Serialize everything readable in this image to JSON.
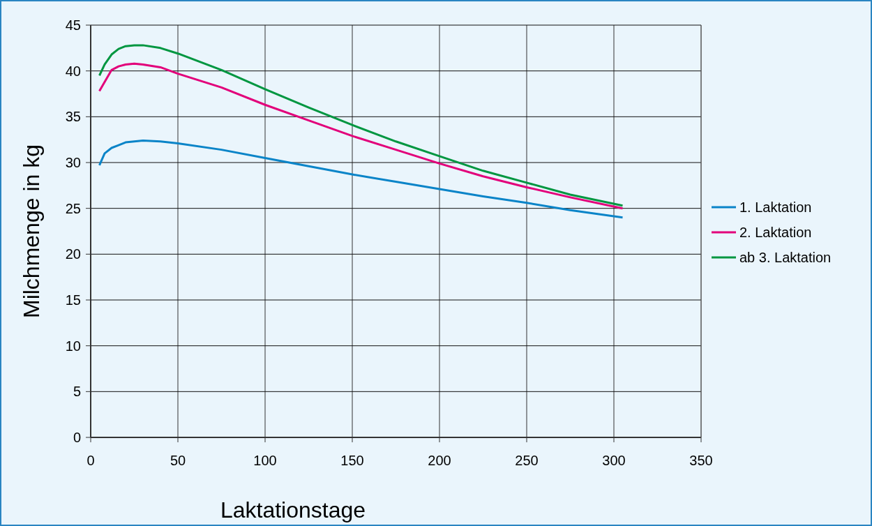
{
  "chart_data": {
    "type": "line",
    "xlabel": "Laktationstage",
    "ylabel": "Milchmenge in kg",
    "x": [
      5,
      8,
      12,
      16,
      20,
      25,
      30,
      40,
      50,
      75,
      100,
      125,
      150,
      175,
      200,
      225,
      250,
      275,
      305
    ],
    "series": [
      {
        "name": "1. Laktation",
        "color": "#0a84c8",
        "values": [
          29.7,
          31.0,
          31.6,
          31.9,
          32.2,
          32.3,
          32.4,
          32.3,
          32.1,
          31.4,
          30.5,
          29.6,
          28.7,
          27.9,
          27.1,
          26.3,
          25.6,
          24.8,
          24.0
        ]
      },
      {
        "name": "2. Laktation",
        "color": "#e2007a",
        "values": [
          37.8,
          38.8,
          40.1,
          40.5,
          40.7,
          40.8,
          40.7,
          40.4,
          39.7,
          38.2,
          36.3,
          34.6,
          32.9,
          31.4,
          29.9,
          28.5,
          27.3,
          26.2,
          25.0
        ]
      },
      {
        "name": "ab 3. Laktation",
        "color": "#009640",
        "values": [
          39.5,
          40.7,
          41.8,
          42.4,
          42.7,
          42.8,
          42.8,
          42.5,
          41.9,
          40.1,
          38.0,
          36.0,
          34.1,
          32.3,
          30.7,
          29.1,
          27.8,
          26.5,
          25.3
        ]
      }
    ],
    "xlim": [
      0,
      350
    ],
    "xticks": [
      0,
      50,
      100,
      150,
      200,
      250,
      300,
      350
    ],
    "ylim": [
      0,
      45
    ],
    "yticks": [
      0,
      5,
      10,
      15,
      20,
      25,
      30,
      35,
      40,
      45
    ],
    "grid": true,
    "legend": "right"
  }
}
